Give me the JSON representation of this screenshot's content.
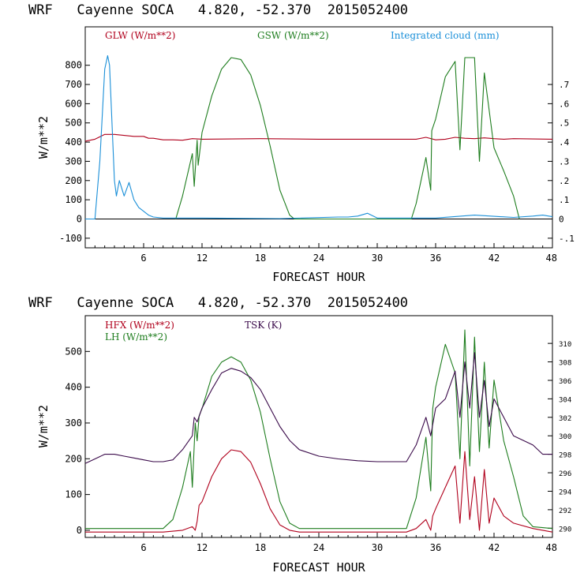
{
  "colors": {
    "red": "#b0001c",
    "green": "#1e7d1e",
    "blue": "#1a8fd8",
    "purple": "#3a0a4a",
    "axis": "#000000"
  },
  "chart_data": [
    {
      "id": "top",
      "type": "line",
      "title": "WRF   Cayenne SOCA   4.820, -52.370  2015052400",
      "xlabel": "FORECAST HOUR",
      "ylabel": "W/m**2",
      "xlim": [
        0,
        48
      ],
      "ylim": [
        -150,
        1000
      ],
      "xticks": [
        "6",
        "12",
        "18",
        "24",
        "30",
        "36",
        "42",
        "48"
      ],
      "yticks": [
        "-100",
        "0",
        "100",
        "200",
        "300",
        "400",
        "500",
        "600",
        "700",
        "800"
      ],
      "y2lim": [
        -0.15,
        1.0
      ],
      "y2ticks": [
        "-.1",
        "0",
        ".1",
        ".2",
        ".3",
        ".4",
        ".5",
        ".6",
        ".7"
      ],
      "legend": [
        "GLW (W/m**2)",
        "GSW (W/m**2)",
        "Integrated cloud (mm)"
      ],
      "series": [
        {
          "name": "GLW (W/m**2)",
          "color_key": "red",
          "axis": "left",
          "x": [
            0,
            1,
            2,
            3,
            4,
            5,
            6,
            6.5,
            7,
            8,
            9,
            10,
            11,
            12,
            18,
            24,
            30,
            34,
            35,
            36,
            37,
            38,
            39,
            40,
            41,
            42,
            43,
            44,
            48
          ],
          "y": [
            405,
            415,
            440,
            440,
            435,
            430,
            430,
            420,
            420,
            412,
            412,
            410,
            418,
            415,
            418,
            415,
            415,
            415,
            425,
            412,
            415,
            425,
            420,
            418,
            422,
            418,
            415,
            418,
            415
          ]
        },
        {
          "name": "GSW (W/m**2)",
          "color_key": "green",
          "axis": "left",
          "x": [
            9.3,
            10,
            11,
            11.2,
            11.5,
            11.6,
            12,
            13,
            14,
            15,
            16,
            17,
            18,
            19,
            20,
            21,
            21.5,
            33.5,
            34,
            35,
            35.5,
            35.6,
            36,
            37,
            38,
            38.5,
            39,
            40,
            40.5,
            41,
            42,
            43,
            44,
            44.6
          ],
          "y": [
            0,
            120,
            340,
            170,
            410,
            280,
            450,
            640,
            780,
            840,
            830,
            750,
            590,
            380,
            150,
            20,
            0,
            0,
            80,
            320,
            150,
            460,
            520,
            740,
            820,
            360,
            840,
            840,
            300,
            760,
            370,
            250,
            120,
            0
          ]
        },
        {
          "name": "Integrated cloud (mm)",
          "color_key": "blue",
          "axis": "right",
          "x": [
            0,
            1,
            1.5,
            2,
            2.3,
            2.5,
            3,
            3.2,
            3.5,
            4,
            4.5,
            5,
            5.5,
            6,
            6.5,
            7,
            8,
            12,
            20,
            26,
            27,
            28,
            29,
            30,
            36,
            40,
            44,
            46,
            47,
            48
          ],
          "y": [
            0,
            0,
            0.3,
            0.78,
            0.85,
            0.8,
            0.2,
            0.12,
            0.2,
            0.12,
            0.19,
            0.1,
            0.06,
            0.04,
            0.02,
            0.01,
            0.005,
            0.005,
            0.002,
            0.01,
            0.01,
            0.015,
            0.03,
            0.005,
            0.005,
            0.02,
            0.008,
            0.015,
            0.02,
            0.012
          ]
        }
      ]
    },
    {
      "id": "bottom",
      "type": "line",
      "title": "WRF   Cayenne SOCA   4.820, -52.370  2015052400",
      "xlabel": "FORECAST HOUR",
      "ylabel": "W/m**2",
      "xlim": [
        0,
        48
      ],
      "ylim": [
        -20,
        600
      ],
      "xticks": [
        "6",
        "12",
        "18",
        "24",
        "30",
        "36",
        "42",
        "48"
      ],
      "yticks": [
        "0",
        "100",
        "200",
        "300",
        "400",
        "500"
      ],
      "y2lim": [
        289,
        313
      ],
      "y2ticks": [
        "290",
        "292",
        "294",
        "296",
        "298",
        "300",
        "302",
        "304",
        "306",
        "308",
        "310"
      ],
      "legend": [
        "HFX (W/m**2)",
        "LH (W/m**2)",
        "TSK (K)"
      ],
      "series": [
        {
          "name": "HFX (W/m**2)",
          "color_key": "red",
          "axis": "left",
          "x": [
            0,
            8,
            10,
            11,
            11.3,
            11.5,
            11.7,
            12,
            13,
            14,
            15,
            16,
            17,
            18,
            19,
            20,
            21,
            22,
            33,
            34,
            35,
            35.5,
            35.7,
            36,
            37,
            38,
            38.5,
            39,
            39.5,
            40,
            40.5,
            41,
            41.5,
            42,
            43,
            44,
            46,
            48
          ],
          "y": [
            -5,
            -5,
            0,
            10,
            0,
            25,
            70,
            80,
            150,
            200,
            225,
            220,
            190,
            130,
            60,
            15,
            0,
            -5,
            -5,
            5,
            30,
            0,
            40,
            60,
            120,
            180,
            20,
            220,
            30,
            150,
            0,
            170,
            20,
            90,
            40,
            20,
            5,
            -5
          ]
        },
        {
          "name": "LH (W/m**2)",
          "color_key": "green",
          "axis": "left",
          "x": [
            0,
            8,
            9,
            10,
            10.8,
            11,
            11.3,
            11.5,
            11.7,
            12,
            13,
            14,
            15,
            16,
            17,
            18,
            19,
            20,
            21,
            22,
            33,
            34,
            35,
            35.5,
            35.7,
            36,
            37,
            38,
            38.5,
            39,
            39.5,
            40,
            40.5,
            41,
            41.5,
            42,
            43,
            44,
            45,
            46,
            48
          ],
          "y": [
            5,
            5,
            30,
            120,
            220,
            120,
            300,
            250,
            320,
            340,
            430,
            470,
            485,
            470,
            420,
            330,
            200,
            80,
            20,
            5,
            5,
            90,
            260,
            110,
            340,
            400,
            520,
            440,
            200,
            560,
            180,
            540,
            220,
            470,
            230,
            420,
            250,
            150,
            40,
            10,
            5
          ]
        },
        {
          "name": "TSK (K)",
          "color_key": "purple",
          "axis": "right",
          "x": [
            0,
            1,
            2,
            3,
            4,
            5,
            6,
            7,
            8,
            9,
            10,
            11,
            11.2,
            11.5,
            12,
            13,
            14,
            15,
            16,
            17,
            18,
            19,
            20,
            21,
            22,
            24,
            26,
            28,
            30,
            33,
            34,
            35,
            35.5,
            36,
            37,
            38,
            38.5,
            39,
            39.5,
            40,
            40.5,
            41,
            41.5,
            42,
            43,
            44,
            46,
            47,
            48
          ],
          "y": [
            297,
            297.5,
            298,
            298,
            297.8,
            297.6,
            297.4,
            297.2,
            297.2,
            297.4,
            298.5,
            300,
            302,
            301.5,
            303,
            305,
            306.8,
            307.3,
            307,
            306.3,
            305,
            303,
            301,
            299.5,
            298.5,
            297.8,
            297.5,
            297.3,
            297.2,
            297.2,
            299,
            302,
            300,
            303,
            304,
            307,
            302,
            308,
            303,
            309,
            302,
            306,
            301,
            304,
            302,
            300,
            299,
            298,
            298
          ]
        }
      ]
    }
  ]
}
